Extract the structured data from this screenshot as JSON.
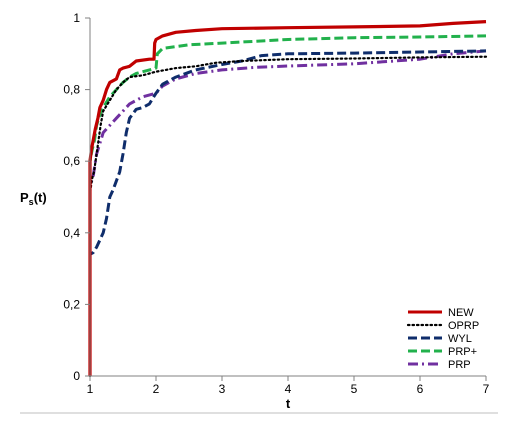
{
  "chart_data": {
    "type": "line",
    "xlabel": "t",
    "ylabel": "P",
    "ylabel_sub": "s",
    "ylabel_suffix": "(t)",
    "xlim": [
      1,
      7
    ],
    "ylim": [
      0,
      1
    ],
    "x_ticks": [
      1,
      2,
      3,
      4,
      5,
      6,
      7
    ],
    "y_ticks": [
      0,
      0.2,
      0.4,
      0.6,
      0.8,
      1
    ],
    "y_tick_labels": [
      "0",
      "0,2",
      "0,4",
      "0,6",
      "0,8",
      "1"
    ],
    "grid": false,
    "legend_position": "bottom-right",
    "series": [
      {
        "name": "NEW",
        "color": "#c00000",
        "dash": "solid",
        "points": [
          [
            1,
            0
          ],
          [
            1,
            0.52
          ],
          [
            1,
            0.6
          ],
          [
            1.02,
            0.63
          ],
          [
            1.05,
            0.66
          ],
          [
            1.08,
            0.69
          ],
          [
            1.12,
            0.72
          ],
          [
            1.15,
            0.75
          ],
          [
            1.2,
            0.77
          ],
          [
            1.25,
            0.8
          ],
          [
            1.3,
            0.82
          ],
          [
            1.4,
            0.83
          ],
          [
            1.45,
            0.855
          ],
          [
            1.5,
            0.86
          ],
          [
            1.6,
            0.865
          ],
          [
            1.7,
            0.88
          ],
          [
            1.9,
            0.885
          ],
          [
            1.97,
            0.885
          ],
          [
            1.98,
            0.93
          ],
          [
            2.0,
            0.94
          ],
          [
            2.1,
            0.95
          ],
          [
            2.3,
            0.96
          ],
          [
            2.6,
            0.965
          ],
          [
            3.0,
            0.97
          ],
          [
            4.0,
            0.973
          ],
          [
            5.0,
            0.975
          ],
          [
            6.0,
            0.978
          ],
          [
            6.5,
            0.985
          ],
          [
            7.0,
            0.99
          ]
        ]
      },
      {
        "name": "OPRP",
        "color": "#000000",
        "dash": "dotted",
        "points": [
          [
            1,
            0
          ],
          [
            1,
            0.51
          ],
          [
            1.03,
            0.55
          ],
          [
            1.06,
            0.57
          ],
          [
            1.1,
            0.62
          ],
          [
            1.13,
            0.66
          ],
          [
            1.16,
            0.7
          ],
          [
            1.2,
            0.74
          ],
          [
            1.3,
            0.77
          ],
          [
            1.4,
            0.8
          ],
          [
            1.5,
            0.82
          ],
          [
            1.6,
            0.835
          ],
          [
            1.8,
            0.84
          ],
          [
            2.0,
            0.85
          ],
          [
            2.3,
            0.86
          ],
          [
            2.6,
            0.865
          ],
          [
            2.9,
            0.875
          ],
          [
            3.3,
            0.88
          ],
          [
            4.0,
            0.885
          ],
          [
            5.0,
            0.887
          ],
          [
            6.0,
            0.89
          ],
          [
            7.0,
            0.892
          ]
        ]
      },
      {
        "name": "WYL",
        "color": "#0f2d6b",
        "dash": "dashed",
        "points": [
          [
            1,
            0
          ],
          [
            1,
            0.34
          ],
          [
            1.05,
            0.345
          ],
          [
            1.1,
            0.36
          ],
          [
            1.15,
            0.38
          ],
          [
            1.2,
            0.4
          ],
          [
            1.25,
            0.44
          ],
          [
            1.3,
            0.5
          ],
          [
            1.35,
            0.52
          ],
          [
            1.45,
            0.57
          ],
          [
            1.5,
            0.62
          ],
          [
            1.55,
            0.68
          ],
          [
            1.6,
            0.72
          ],
          [
            1.7,
            0.745
          ],
          [
            1.8,
            0.75
          ],
          [
            1.9,
            0.76
          ],
          [
            2.0,
            0.79
          ],
          [
            2.1,
            0.815
          ],
          [
            2.3,
            0.835
          ],
          [
            2.6,
            0.855
          ],
          [
            3.0,
            0.87
          ],
          [
            3.3,
            0.88
          ],
          [
            3.6,
            0.895
          ],
          [
            4.0,
            0.9
          ],
          [
            5.0,
            0.902
          ],
          [
            6.0,
            0.905
          ],
          [
            7.0,
            0.908
          ]
        ]
      },
      {
        "name": "PRP+",
        "color": "#22b14c",
        "dash": "dashed",
        "points": [
          [
            1,
            0
          ],
          [
            1,
            0.6
          ],
          [
            1.03,
            0.63
          ],
          [
            1.07,
            0.66
          ],
          [
            1.1,
            0.7
          ],
          [
            1.15,
            0.73
          ],
          [
            1.2,
            0.75
          ],
          [
            1.3,
            0.78
          ],
          [
            1.4,
            0.8
          ],
          [
            1.5,
            0.82
          ],
          [
            1.6,
            0.835
          ],
          [
            1.7,
            0.845
          ],
          [
            1.8,
            0.85
          ],
          [
            1.9,
            0.855
          ],
          [
            2.0,
            0.86
          ],
          [
            2.02,
            0.9
          ],
          [
            2.1,
            0.915
          ],
          [
            2.5,
            0.925
          ],
          [
            3.0,
            0.93
          ],
          [
            4.0,
            0.94
          ],
          [
            5.0,
            0.945
          ],
          [
            6.0,
            0.947
          ],
          [
            7.0,
            0.95
          ]
        ]
      },
      {
        "name": "PRP",
        "color": "#7030a0",
        "dash": "dashdot",
        "points": [
          [
            1,
            0
          ],
          [
            1,
            0.53
          ],
          [
            1.05,
            0.56
          ],
          [
            1.1,
            0.62
          ],
          [
            1.15,
            0.65
          ],
          [
            1.2,
            0.68
          ],
          [
            1.3,
            0.7
          ],
          [
            1.4,
            0.72
          ],
          [
            1.5,
            0.74
          ],
          [
            1.6,
            0.76
          ],
          [
            1.8,
            0.78
          ],
          [
            2.0,
            0.79
          ],
          [
            2.1,
            0.81
          ],
          [
            2.3,
            0.83
          ],
          [
            2.6,
            0.845
          ],
          [
            3.0,
            0.855
          ],
          [
            3.5,
            0.862
          ],
          [
            4.0,
            0.866
          ],
          [
            5.0,
            0.872
          ],
          [
            6.0,
            0.885
          ],
          [
            6.5,
            0.9
          ],
          [
            7.0,
            0.908
          ]
        ]
      }
    ]
  }
}
